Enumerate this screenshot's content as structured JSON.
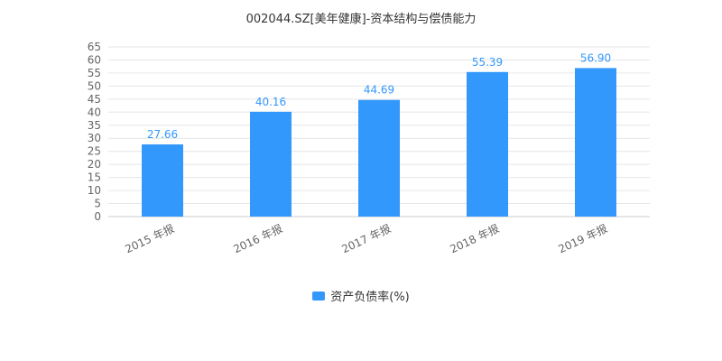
{
  "chart_data": {
    "type": "bar",
    "title": "002044.SZ[美年健康]-资本结构与偿债能力",
    "categories": [
      "2015 年报",
      "2016 年报",
      "2017 年报",
      "2018 年报",
      "2019 年报"
    ],
    "series": [
      {
        "name": "资产负债率(%)",
        "values": [
          27.66,
          40.16,
          44.69,
          55.39,
          56.9
        ],
        "labels": [
          "27.66",
          "40.16",
          "44.69",
          "55.39",
          "56.90"
        ]
      }
    ],
    "yticks": [
      "0",
      "5",
      "10",
      "15",
      "20",
      "25",
      "30",
      "35",
      "40",
      "45",
      "50",
      "55",
      "60",
      "65"
    ],
    "ylim": [
      0,
      65
    ],
    "grid": true,
    "legend_position": "bottom-center",
    "colors": {
      "bar": "#3398fc",
      "value_label": "#3398fc",
      "axis_text": "#666666",
      "grid": "#e6e6e6",
      "axis": "#cccccc"
    }
  }
}
